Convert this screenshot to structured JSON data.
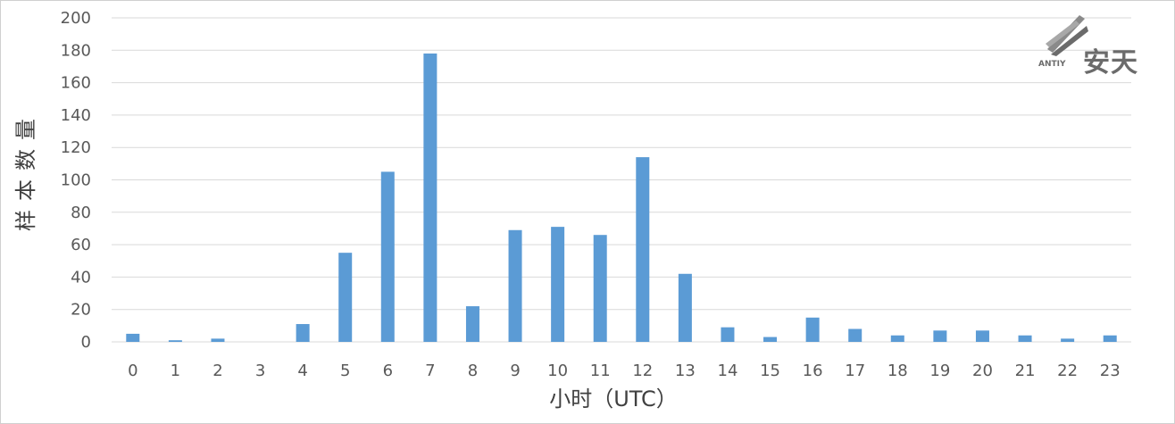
{
  "chart_data": {
    "type": "bar",
    "title": "",
    "xlabel": "小时（UTC）",
    "ylabel": "样本数量",
    "categories": [
      "0",
      "1",
      "2",
      "3",
      "4",
      "5",
      "6",
      "7",
      "8",
      "9",
      "10",
      "11",
      "12",
      "13",
      "14",
      "15",
      "16",
      "17",
      "18",
      "19",
      "20",
      "21",
      "22",
      "23"
    ],
    "values": [
      5,
      1,
      2,
      0,
      11,
      55,
      105,
      178,
      22,
      69,
      71,
      66,
      114,
      42,
      9,
      3,
      15,
      8,
      4,
      7,
      7,
      4,
      2,
      4
    ],
    "ylim": [
      0,
      200
    ],
    "yticks": [
      "0",
      "20",
      "40",
      "60",
      "80",
      "100",
      "120",
      "140",
      "160",
      "180",
      "200"
    ],
    "grid": true,
    "legend": "none",
    "colors": {
      "bar": "#5b9bd5",
      "grid": "#d9d9d9",
      "text": "#595959"
    }
  },
  "logo": {
    "text_cn": "安天",
    "text_en": "ANTIY",
    "color": "#6b6b6b"
  }
}
